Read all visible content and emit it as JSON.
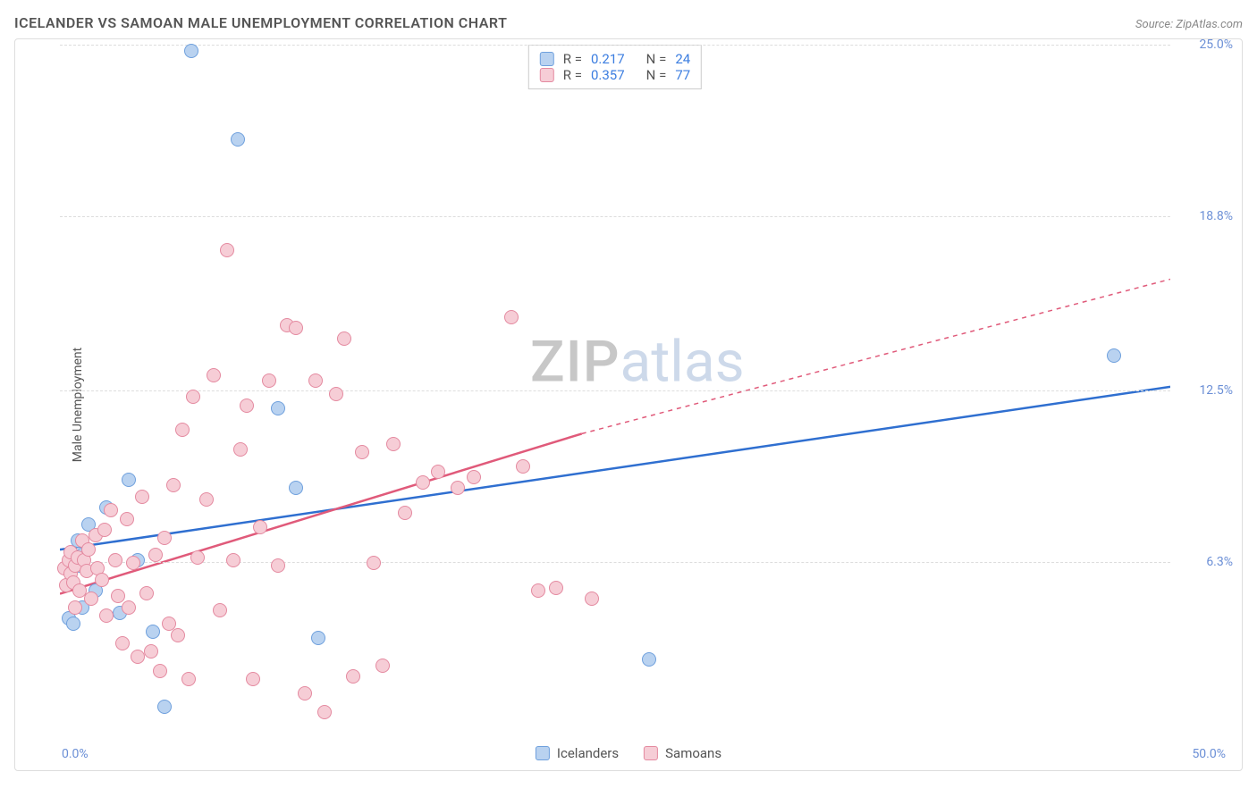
{
  "title": "ICELANDER VS SAMOAN MALE UNEMPLOYMENT CORRELATION CHART",
  "source": "Source: ZipAtlas.com",
  "ylabel": "Male Unemployment",
  "watermark": {
    "part1": "ZIP",
    "part2": "atlas"
  },
  "chart": {
    "type": "scatter",
    "xlim": [
      0,
      50
    ],
    "ylim": [
      0,
      25
    ],
    "x_ticks": [
      {
        "value": 0,
        "label": "0.0%"
      },
      {
        "value": 50,
        "label": "50.0%"
      }
    ],
    "y_ticks": [
      {
        "value": 6.3,
        "label": "6.3%"
      },
      {
        "value": 12.5,
        "label": "12.5%"
      },
      {
        "value": 18.8,
        "label": "18.8%"
      },
      {
        "value": 25.0,
        "label": "25.0%"
      }
    ],
    "gridlines_y": [
      6.3,
      12.5,
      18.8,
      25.0
    ],
    "background_color": "#ffffff",
    "grid_color": "#dddddd",
    "marker_radius": 8,
    "marker_border_width": 1.5,
    "trend_line_width": 2.5
  },
  "series": [
    {
      "name": "Icelanders",
      "fill": "#b9d2f0",
      "stroke": "#6fa0dd",
      "trend_color": "#2f6fd0",
      "R": "0.217",
      "N": "24",
      "trend": {
        "x0": 0,
        "y0": 6.7,
        "x_solid_end": 50,
        "y_solid_end": 12.6,
        "x_dash_end": 50,
        "y_dash_end": 12.6
      },
      "points": [
        [
          0.4,
          4.2
        ],
        [
          0.6,
          4.0
        ],
        [
          0.8,
          7.0
        ],
        [
          0.9,
          6.1
        ],
        [
          1.0,
          4.6
        ],
        [
          1.0,
          6.5
        ],
        [
          1.3,
          7.6
        ],
        [
          1.6,
          5.2
        ],
        [
          2.1,
          8.2
        ],
        [
          2.7,
          4.4
        ],
        [
          3.1,
          9.2
        ],
        [
          3.5,
          6.3
        ],
        [
          4.2,
          3.7
        ],
        [
          4.7,
          1.0
        ],
        [
          5.9,
          24.7
        ],
        [
          8.0,
          21.5
        ],
        [
          9.8,
          11.8
        ],
        [
          10.6,
          8.9
        ],
        [
          11.6,
          3.5
        ],
        [
          26.5,
          2.7
        ],
        [
          47.4,
          13.7
        ]
      ]
    },
    {
      "name": "Samoans",
      "fill": "#f6cdd6",
      "stroke": "#e48aa0",
      "trend_color": "#e05a7a",
      "R": "0.357",
      "N": "77",
      "trend": {
        "x0": 0,
        "y0": 5.1,
        "x_solid_end": 23.5,
        "y_solid_end": 10.9,
        "x_dash_end": 50,
        "y_dash_end": 16.5
      },
      "points": [
        [
          0.2,
          6.0
        ],
        [
          0.3,
          5.4
        ],
        [
          0.4,
          6.3
        ],
        [
          0.5,
          5.8
        ],
        [
          0.5,
          6.6
        ],
        [
          0.6,
          5.5
        ],
        [
          0.7,
          6.1
        ],
        [
          0.7,
          4.6
        ],
        [
          0.8,
          6.4
        ],
        [
          0.9,
          5.2
        ],
        [
          1.0,
          7.0
        ],
        [
          1.1,
          6.3
        ],
        [
          1.2,
          5.9
        ],
        [
          1.3,
          6.7
        ],
        [
          1.4,
          4.9
        ],
        [
          1.6,
          7.2
        ],
        [
          1.7,
          6.0
        ],
        [
          1.9,
          5.6
        ],
        [
          2.0,
          7.4
        ],
        [
          2.1,
          4.3
        ],
        [
          2.3,
          8.1
        ],
        [
          2.5,
          6.3
        ],
        [
          2.6,
          5.0
        ],
        [
          2.8,
          3.3
        ],
        [
          3.0,
          7.8
        ],
        [
          3.1,
          4.6
        ],
        [
          3.3,
          6.2
        ],
        [
          3.5,
          2.8
        ],
        [
          3.7,
          8.6
        ],
        [
          3.9,
          5.1
        ],
        [
          4.1,
          3.0
        ],
        [
          4.3,
          6.5
        ],
        [
          4.5,
          2.3
        ],
        [
          4.7,
          7.1
        ],
        [
          4.9,
          4.0
        ],
        [
          5.1,
          9.0
        ],
        [
          5.3,
          3.6
        ],
        [
          5.5,
          11.0
        ],
        [
          5.8,
          2.0
        ],
        [
          6.0,
          12.2
        ],
        [
          6.2,
          6.4
        ],
        [
          6.6,
          8.5
        ],
        [
          6.9,
          13.0
        ],
        [
          7.2,
          4.5
        ],
        [
          7.5,
          17.5
        ],
        [
          7.8,
          6.3
        ],
        [
          8.1,
          10.3
        ],
        [
          8.4,
          11.9
        ],
        [
          8.7,
          2.0
        ],
        [
          9.0,
          7.5
        ],
        [
          9.4,
          12.8
        ],
        [
          9.8,
          6.1
        ],
        [
          10.2,
          14.8
        ],
        [
          10.6,
          14.7
        ],
        [
          11.0,
          1.5
        ],
        [
          11.5,
          12.8
        ],
        [
          11.9,
          0.8
        ],
        [
          12.4,
          12.3
        ],
        [
          12.8,
          14.3
        ],
        [
          13.2,
          2.1
        ],
        [
          13.6,
          10.2
        ],
        [
          14.1,
          6.2
        ],
        [
          14.5,
          2.5
        ],
        [
          15.0,
          10.5
        ],
        [
          15.5,
          8.0
        ],
        [
          16.3,
          9.1
        ],
        [
          17.0,
          9.5
        ],
        [
          17.9,
          8.9
        ],
        [
          18.6,
          9.3
        ],
        [
          20.3,
          15.1
        ],
        [
          20.8,
          9.7
        ],
        [
          21.5,
          5.2
        ],
        [
          22.3,
          5.3
        ],
        [
          23.9,
          4.9
        ]
      ]
    }
  ],
  "xlegend": [
    {
      "label": "Icelanders",
      "fill": "#b9d2f0",
      "stroke": "#6fa0dd"
    },
    {
      "label": "Samoans",
      "fill": "#f6cdd6",
      "stroke": "#e48aa0"
    }
  ]
}
